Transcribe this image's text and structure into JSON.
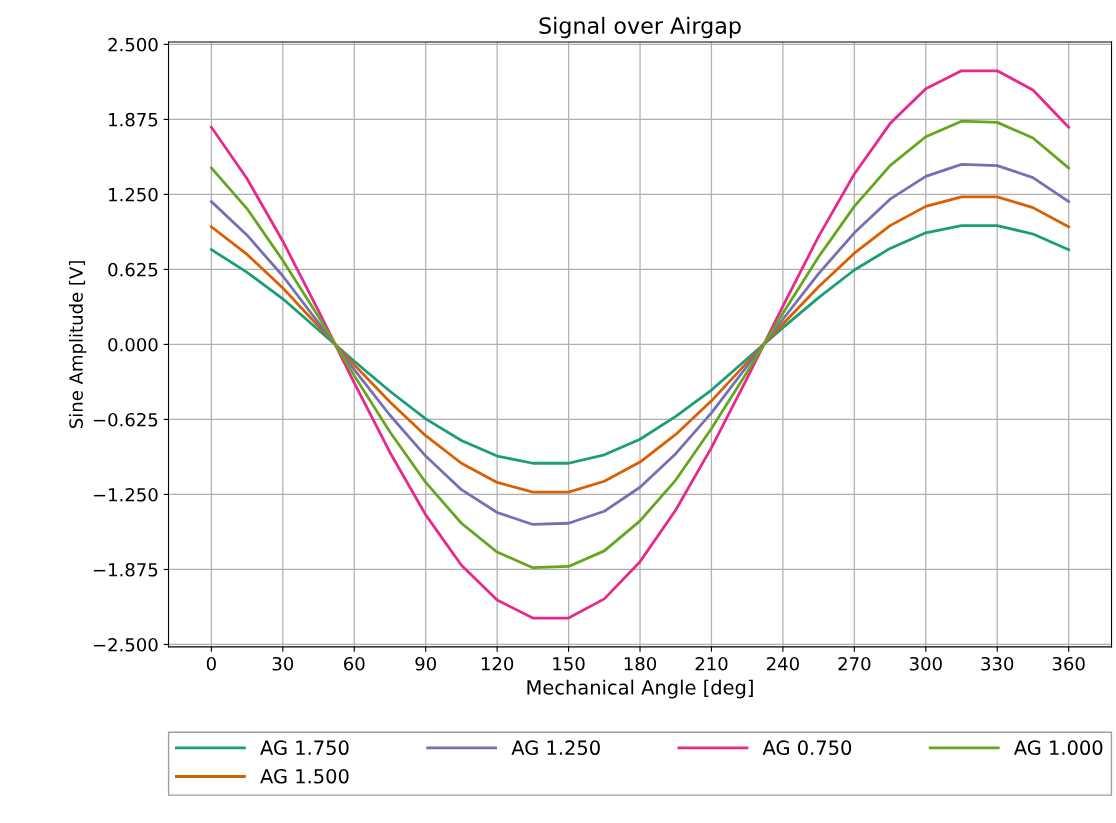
{
  "chart_data": {
    "type": "line",
    "title": "Signal over Airgap",
    "xlabel": "Mechanical Angle [deg]",
    "ylabel": "Sine Amplitude [V]",
    "x": [
      0,
      15,
      30,
      45,
      60,
      75,
      90,
      105,
      120,
      135,
      150,
      165,
      180,
      195,
      210,
      225,
      240,
      255,
      270,
      285,
      300,
      315,
      330,
      345,
      360
    ],
    "series": [
      {
        "name": "AG 1.750",
        "color": "#1b9e77",
        "values": [
          0.79,
          0.6,
          0.38,
          0.12,
          -0.14,
          -0.39,
          -0.62,
          -0.8,
          -0.93,
          -0.99,
          -0.99,
          -0.92,
          -0.79,
          -0.6,
          -0.38,
          -0.12,
          0.14,
          0.39,
          0.62,
          0.8,
          0.93,
          0.99,
          0.99,
          0.92,
          0.79
        ]
      },
      {
        "name": "AG 1.500",
        "color": "#d95f02",
        "values": [
          0.98,
          0.75,
          0.47,
          0.15,
          -0.17,
          -0.48,
          -0.76,
          -0.99,
          -1.15,
          -1.23,
          -1.23,
          -1.14,
          -0.98,
          -0.75,
          -0.47,
          -0.15,
          0.17,
          0.48,
          0.76,
          0.99,
          1.15,
          1.23,
          1.23,
          1.14,
          0.98
        ]
      },
      {
        "name": "AG 1.250",
        "color": "#7570b3",
        "values": [
          1.19,
          0.91,
          0.57,
          0.18,
          -0.21,
          -0.59,
          -0.93,
          -1.21,
          -1.4,
          -1.5,
          -1.49,
          -1.39,
          -1.19,
          -0.91,
          -0.57,
          -0.18,
          0.21,
          0.59,
          0.93,
          1.21,
          1.4,
          1.5,
          1.49,
          1.39,
          1.19
        ]
      },
      {
        "name": "AG 0.750",
        "color": "#e7298a",
        "values": [
          1.81,
          1.38,
          0.86,
          0.28,
          -0.32,
          -0.9,
          -1.42,
          -1.84,
          -2.13,
          -2.28,
          -2.28,
          -2.12,
          -1.81,
          -1.38,
          -0.86,
          -0.28,
          0.32,
          0.9,
          1.42,
          1.84,
          2.13,
          2.28,
          2.28,
          2.12,
          1.81
        ]
      },
      {
        "name": "AG 1.000",
        "color": "#66a61e",
        "values": [
          1.47,
          1.13,
          0.7,
          0.23,
          -0.26,
          -0.73,
          -1.15,
          -1.49,
          -1.73,
          -1.86,
          -1.85,
          -1.72,
          -1.47,
          -1.13,
          -0.7,
          -0.23,
          0.26,
          0.73,
          1.15,
          1.49,
          1.73,
          1.86,
          1.85,
          1.72,
          1.47
        ]
      }
    ],
    "xlim": [
      -18,
      378
    ],
    "xticks": [
      0,
      30,
      60,
      90,
      120,
      150,
      180,
      210,
      240,
      270,
      300,
      330,
      360
    ],
    "ylim": [
      -2.52,
      2.52
    ],
    "yticks": [
      {
        "value": -2.5,
        "label": "−2.500"
      },
      {
        "value": -1.875,
        "label": "−1.875"
      },
      {
        "value": -1.25,
        "label": "−1.250"
      },
      {
        "value": -0.625,
        "label": "−0.625"
      },
      {
        "value": 0,
        "label": "0.000"
      },
      {
        "value": 0.625,
        "label": "0.625"
      },
      {
        "value": 1.25,
        "label": "1.250"
      },
      {
        "value": 1.875,
        "label": "1.875"
      },
      {
        "value": 2.5,
        "label": "2.500"
      }
    ],
    "grid": true,
    "legend": "bottom",
    "marker": "none",
    "line_style": "solid"
  }
}
